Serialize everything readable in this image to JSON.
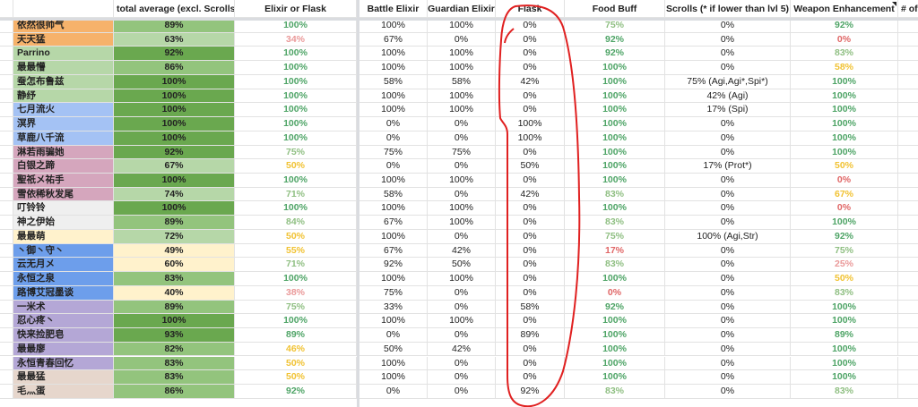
{
  "headers": [
    "",
    "total average (excl. Scrolls)",
    "Elixir or Flask",
    "Battle Elixir",
    "Guardian Elixir",
    "Flask",
    "Food Buff",
    "Scrolls (* if lower than lvl 5)",
    "Weapon Enhancement",
    "# of"
  ],
  "colors": {
    "orange": "#f6b26b",
    "lightgreen": "#b6d7a8",
    "lightblue": "#a4c2f4",
    "pink": "#d5a6bd",
    "gray": "#efefef",
    "yellow": "#fff2cc",
    "blue": "#6d9eeb",
    "purple": "#b4a7d6",
    "beige": "#e6d6cc",
    "annotation": "#e02020"
  },
  "rows": [
    {
      "name": "依然很帅气",
      "group": "orange",
      "total": "89%",
      "elixir_or_flask": "100%",
      "battle": "100%",
      "guardian": "100%",
      "flask": "0%",
      "food": "75%",
      "scrolls": "0%",
      "weapon": "92%"
    },
    {
      "name": "天天猛",
      "group": "orange",
      "total": "63%",
      "elixir_or_flask": "34%",
      "battle": "67%",
      "guardian": "0%",
      "flask": "0%",
      "food": "92%",
      "scrolls": "0%",
      "weapon": "0%"
    },
    {
      "name": "Parrino",
      "group": "lightgreen",
      "total": "92%",
      "elixir_or_flask": "100%",
      "battle": "100%",
      "guardian": "100%",
      "flask": "0%",
      "food": "92%",
      "scrolls": "0%",
      "weapon": "83%"
    },
    {
      "name": "最最懵",
      "group": "lightgreen",
      "total": "86%",
      "elixir_or_flask": "100%",
      "battle": "100%",
      "guardian": "100%",
      "flask": "0%",
      "food": "100%",
      "scrolls": "0%",
      "weapon": "58%"
    },
    {
      "name": "蚕怎布鲁兹",
      "group": "lightgreen",
      "total": "100%",
      "elixir_or_flask": "100%",
      "battle": "58%",
      "guardian": "58%",
      "flask": "42%",
      "food": "100%",
      "scrolls": "75% (Agi,Agi*,Spi*)",
      "weapon": "100%"
    },
    {
      "name": "静纾",
      "group": "lightgreen",
      "total": "100%",
      "elixir_or_flask": "100%",
      "battle": "100%",
      "guardian": "100%",
      "flask": "0%",
      "food": "100%",
      "scrolls": "42% (Agi)",
      "weapon": "100%"
    },
    {
      "name": "七月流火",
      "group": "lightblue",
      "total": "100%",
      "elixir_or_flask": "100%",
      "battle": "100%",
      "guardian": "100%",
      "flask": "0%",
      "food": "100%",
      "scrolls": "17% (Spi)",
      "weapon": "100%"
    },
    {
      "name": "溟界",
      "group": "lightblue",
      "total": "100%",
      "elixir_or_flask": "100%",
      "battle": "0%",
      "guardian": "0%",
      "flask": "100%",
      "food": "100%",
      "scrolls": "0%",
      "weapon": "100%"
    },
    {
      "name": "草鹿八千流",
      "group": "lightblue",
      "total": "100%",
      "elixir_or_flask": "100%",
      "battle": "0%",
      "guardian": "0%",
      "flask": "100%",
      "food": "100%",
      "scrolls": "0%",
      "weapon": "100%"
    },
    {
      "name": "淋若雨骗她",
      "group": "pink",
      "total": "92%",
      "elixir_or_flask": "75%",
      "battle": "75%",
      "guardian": "75%",
      "flask": "0%",
      "food": "100%",
      "scrolls": "0%",
      "weapon": "100%"
    },
    {
      "name": "白银之蹄",
      "group": "pink",
      "total": "67%",
      "elixir_or_flask": "50%",
      "battle": "0%",
      "guardian": "0%",
      "flask": "50%",
      "food": "100%",
      "scrolls": "17% (Prot*)",
      "weapon": "50%"
    },
    {
      "name": "聖祇メ祐手",
      "group": "pink",
      "total": "100%",
      "elixir_or_flask": "100%",
      "battle": "100%",
      "guardian": "100%",
      "flask": "0%",
      "food": "100%",
      "scrolls": "0%",
      "weapon": "0%"
    },
    {
      "name": "雪依稀秋发尾",
      "group": "pink",
      "total": "74%",
      "elixir_or_flask": "71%",
      "battle": "58%",
      "guardian": "0%",
      "flask": "42%",
      "food": "83%",
      "scrolls": "0%",
      "weapon": "67%"
    },
    {
      "name": "叮铃铃",
      "group": "gray",
      "total": "100%",
      "elixir_or_flask": "100%",
      "battle": "100%",
      "guardian": "100%",
      "flask": "0%",
      "food": "100%",
      "scrolls": "0%",
      "weapon": "0%"
    },
    {
      "name": "神之伊始",
      "group": "gray",
      "total": "89%",
      "elixir_or_flask": "84%",
      "battle": "67%",
      "guardian": "100%",
      "flask": "0%",
      "food": "83%",
      "scrolls": "0%",
      "weapon": "100%"
    },
    {
      "name": "最最萌",
      "group": "yellow",
      "total": "72%",
      "elixir_or_flask": "50%",
      "battle": "100%",
      "guardian": "0%",
      "flask": "0%",
      "food": "75%",
      "scrolls": "100% (Agi,Str)",
      "weapon": "92%"
    },
    {
      "name": "丶御丶守丶",
      "group": "blue",
      "total": "49%",
      "elixir_or_flask": "55%",
      "battle": "67%",
      "guardian": "42%",
      "flask": "0%",
      "food": "17%",
      "scrolls": "0%",
      "weapon": "75%"
    },
    {
      "name": "云无月メ",
      "group": "blue",
      "total": "60%",
      "elixir_or_flask": "71%",
      "battle": "92%",
      "guardian": "50%",
      "flask": "0%",
      "food": "83%",
      "scrolls": "0%",
      "weapon": "25%"
    },
    {
      "name": "永恒之泉",
      "group": "blue",
      "total": "83%",
      "elixir_or_flask": "100%",
      "battle": "100%",
      "guardian": "100%",
      "flask": "0%",
      "food": "100%",
      "scrolls": "0%",
      "weapon": "50%"
    },
    {
      "name": "路博艾冠墨谈",
      "group": "blue",
      "total": "40%",
      "elixir_or_flask": "38%",
      "battle": "75%",
      "guardian": "0%",
      "flask": "0%",
      "food": "0%",
      "scrolls": "0%",
      "weapon": "83%"
    },
    {
      "name": "一米术",
      "group": "purple",
      "total": "89%",
      "elixir_or_flask": "75%",
      "battle": "33%",
      "guardian": "0%",
      "flask": "58%",
      "food": "92%",
      "scrolls": "0%",
      "weapon": "100%"
    },
    {
      "name": "忍心疼丶",
      "group": "purple",
      "total": "100%",
      "elixir_or_flask": "100%",
      "battle": "100%",
      "guardian": "100%",
      "flask": "0%",
      "food": "100%",
      "scrolls": "0%",
      "weapon": "100%"
    },
    {
      "name": "快来捡肥皂",
      "group": "purple",
      "total": "93%",
      "elixir_or_flask": "89%",
      "battle": "0%",
      "guardian": "0%",
      "flask": "89%",
      "food": "100%",
      "scrolls": "0%",
      "weapon": "89%"
    },
    {
      "name": "最最廖",
      "group": "purple",
      "total": "82%",
      "elixir_or_flask": "46%",
      "battle": "50%",
      "guardian": "42%",
      "flask": "0%",
      "food": "100%",
      "scrolls": "0%",
      "weapon": "100%"
    },
    {
      "name": "永恒青春回忆",
      "group": "purple",
      "total": "83%",
      "elixir_or_flask": "50%",
      "battle": "100%",
      "guardian": "0%",
      "flask": "0%",
      "food": "100%",
      "scrolls": "0%",
      "weapon": "100%"
    },
    {
      "name": "最最猛",
      "group": "beige",
      "total": "83%",
      "elixir_or_flask": "50%",
      "battle": "100%",
      "guardian": "0%",
      "flask": "0%",
      "food": "100%",
      "scrolls": "0%",
      "weapon": "100%"
    },
    {
      "name": "毛灬蛋",
      "group": "beige",
      "total": "86%",
      "elixir_or_flask": "92%",
      "battle": "0%",
      "guardian": "0%",
      "flask": "92%",
      "food": "83%",
      "scrolls": "0%",
      "weapon": "83%"
    }
  ]
}
